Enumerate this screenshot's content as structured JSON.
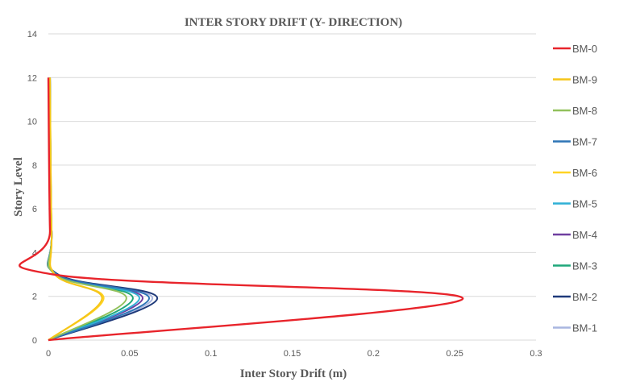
{
  "chart_data": {
    "type": "line",
    "title": "INTER STORY DRIFT (Y- DIRECTION)",
    "xlabel": "Inter Story Drift (m)",
    "ylabel": "Story Level",
    "xlim": [
      0,
      0.3
    ],
    "ylim": [
      0,
      14
    ],
    "xticks": [
      "0",
      "0.05",
      "0.1",
      "0.15",
      "0.2",
      "0.25",
      "0.3"
    ],
    "yticks": [
      "0",
      "2",
      "4",
      "6",
      "8",
      "10",
      "12",
      "14"
    ],
    "grid": "horizontal",
    "legend_position": "right",
    "series": [
      {
        "name": "BM-0",
        "color": "#e8242b",
        "x": [
          0,
          0.255,
          0.003,
          0.001,
          0
        ],
        "y": [
          0,
          1.9,
          3,
          5,
          12
        ]
      },
      {
        "name": "BM-9",
        "color": "#f5c518",
        "x": [
          0,
          0.033,
          0.004,
          0.002,
          0.001
        ],
        "y": [
          0,
          1.9,
          3,
          5,
          12
        ]
      },
      {
        "name": "BM-8",
        "color": "#92c15c",
        "x": [
          0,
          0.048,
          0.004,
          0.002,
          0.001
        ],
        "y": [
          0,
          1.9,
          3,
          5,
          12
        ]
      },
      {
        "name": "BM-7",
        "color": "#2e75b6",
        "x": [
          0,
          0.062,
          0.005,
          0.002,
          0.001
        ],
        "y": [
          0,
          1.9,
          3,
          5,
          12
        ]
      },
      {
        "name": "BM-6",
        "color": "#ffd324",
        "x": [
          0,
          0.034,
          0.004,
          0.002,
          0.001
        ],
        "y": [
          0,
          1.9,
          3,
          5,
          12
        ]
      },
      {
        "name": "BM-5",
        "color": "#2fb0d6",
        "x": [
          0,
          0.056,
          0.005,
          0.002,
          0.001
        ],
        "y": [
          0,
          1.9,
          3,
          5,
          12
        ]
      },
      {
        "name": "BM-4",
        "color": "#6f3fa0",
        "x": [
          0,
          0.058,
          0.005,
          0.002,
          0.001
        ],
        "y": [
          0,
          1.9,
          3,
          5,
          12
        ]
      },
      {
        "name": "BM-3",
        "color": "#1fa77a",
        "x": [
          0,
          0.052,
          0.005,
          0.002,
          0.001
        ],
        "y": [
          0,
          1.9,
          3,
          5,
          12
        ]
      },
      {
        "name": "BM-2",
        "color": "#1f3a7a",
        "x": [
          0,
          0.067,
          0.006,
          0.002,
          0.001
        ],
        "y": [
          0,
          1.9,
          3,
          5,
          12
        ]
      },
      {
        "name": "BM-1",
        "color": "#a9b6e0",
        "x": [
          0,
          0.064,
          0.006,
          0.002,
          0.001
        ],
        "y": [
          0,
          1.9,
          3,
          5,
          12
        ]
      }
    ]
  }
}
